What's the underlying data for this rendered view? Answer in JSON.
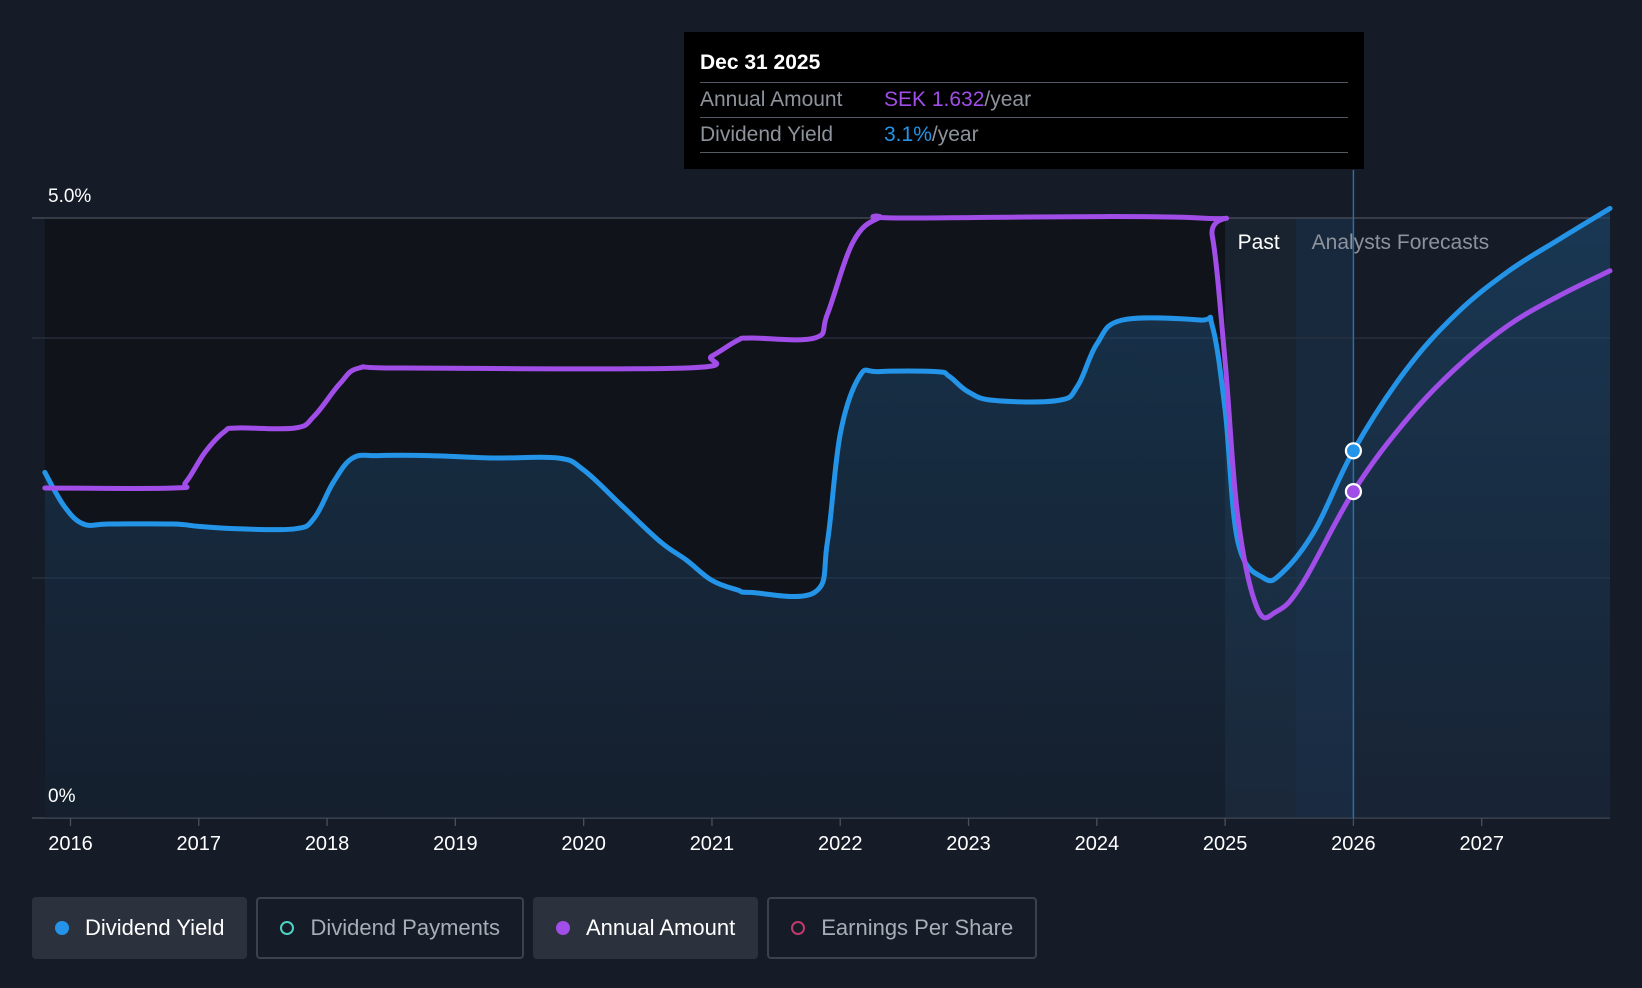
{
  "chart_data": {
    "type": "line",
    "title": "",
    "y_axis": {
      "ticks": [
        {
          "value": 5.0,
          "label": "5.0%"
        },
        {
          "value": 0,
          "label": "0%"
        }
      ],
      "ylim": [
        0,
        5.0
      ]
    },
    "x_axis": {
      "ticks": [
        "2016",
        "2017",
        "2018",
        "2019",
        "2020",
        "2021",
        "2022",
        "2023",
        "2024",
        "2025",
        "2026",
        "2027"
      ],
      "xlim": [
        2015.7,
        2028.0
      ]
    },
    "regions": {
      "past_label": "Past",
      "forecast_label": "Analysts Forecasts",
      "past_start": 2025.0,
      "forecast_start": 2025.55,
      "cursor": 2026.0
    },
    "series": [
      {
        "name": "Dividend Yield",
        "color": "#2394e8",
        "filled": true,
        "points": [
          [
            2015.8,
            2.88
          ],
          [
            2015.95,
            2.6
          ],
          [
            2016.1,
            2.45
          ],
          [
            2016.3,
            2.45
          ],
          [
            2016.8,
            2.45
          ],
          [
            2017.0,
            2.43
          ],
          [
            2017.3,
            2.41
          ],
          [
            2017.75,
            2.41
          ],
          [
            2017.9,
            2.5
          ],
          [
            2018.05,
            2.8
          ],
          [
            2018.2,
            3.0
          ],
          [
            2018.4,
            3.02
          ],
          [
            2018.8,
            3.02
          ],
          [
            2019.3,
            3.0
          ],
          [
            2019.8,
            3.0
          ],
          [
            2020.0,
            2.9
          ],
          [
            2020.3,
            2.6
          ],
          [
            2020.6,
            2.3
          ],
          [
            2020.8,
            2.15
          ],
          [
            2021.0,
            1.98
          ],
          [
            2021.2,
            1.9
          ],
          [
            2021.3,
            1.88
          ],
          [
            2021.8,
            1.88
          ],
          [
            2021.9,
            2.3
          ],
          [
            2022.0,
            3.2
          ],
          [
            2022.15,
            3.68
          ],
          [
            2022.3,
            3.72
          ],
          [
            2022.75,
            3.72
          ],
          [
            2022.85,
            3.68
          ],
          [
            2023.0,
            3.55
          ],
          [
            2023.2,
            3.48
          ],
          [
            2023.7,
            3.48
          ],
          [
            2023.85,
            3.6
          ],
          [
            2024.0,
            3.95
          ],
          [
            2024.2,
            4.15
          ],
          [
            2024.8,
            4.15
          ],
          [
            2024.9,
            4.1
          ],
          [
            2025.0,
            3.4
          ],
          [
            2025.1,
            2.3
          ],
          [
            2025.3,
            2.0
          ],
          [
            2025.45,
            2.05
          ],
          [
            2025.7,
            2.4
          ],
          [
            2026.0,
            3.06
          ],
          [
            2026.4,
            3.72
          ],
          [
            2026.8,
            4.2
          ],
          [
            2027.2,
            4.55
          ],
          [
            2027.6,
            4.82
          ],
          [
            2028.0,
            5.08
          ]
        ]
      },
      {
        "name": "Annual Amount",
        "color": "#a14de8",
        "filled": false,
        "points": [
          [
            2015.8,
            2.75
          ],
          [
            2016.8,
            2.75
          ],
          [
            2016.9,
            2.8
          ],
          [
            2017.05,
            3.05
          ],
          [
            2017.2,
            3.22
          ],
          [
            2017.3,
            3.25
          ],
          [
            2017.75,
            3.25
          ],
          [
            2017.9,
            3.35
          ],
          [
            2018.1,
            3.62
          ],
          [
            2018.25,
            3.75
          ],
          [
            2018.6,
            3.75
          ],
          [
            2020.8,
            3.75
          ],
          [
            2021.0,
            3.85
          ],
          [
            2021.2,
            3.98
          ],
          [
            2021.3,
            4.0
          ],
          [
            2021.8,
            4.0
          ],
          [
            2021.9,
            4.2
          ],
          [
            2022.1,
            4.8
          ],
          [
            2022.3,
            5.0
          ],
          [
            2022.5,
            5.0
          ],
          [
            2024.8,
            5.0
          ],
          [
            2024.9,
            4.85
          ],
          [
            2025.0,
            3.8
          ],
          [
            2025.1,
            2.5
          ],
          [
            2025.25,
            1.75
          ],
          [
            2025.4,
            1.72
          ],
          [
            2025.6,
            1.95
          ],
          [
            2026.0,
            2.72
          ],
          [
            2026.4,
            3.3
          ],
          [
            2026.8,
            3.75
          ],
          [
            2027.2,
            4.1
          ],
          [
            2027.6,
            4.35
          ],
          [
            2028.0,
            4.56
          ]
        ]
      }
    ],
    "markers": [
      {
        "series": "Dividend Yield",
        "x": 2026.0,
        "y": 3.06
      },
      {
        "series": "Annual Amount",
        "x": 2026.0,
        "y": 2.72
      }
    ]
  },
  "tooltip": {
    "date": "Dec 31 2025",
    "rows": [
      {
        "label": "Annual Amount",
        "value": "SEK 1.632",
        "unit": "/year",
        "color": "#a14de8"
      },
      {
        "label": "Dividend Yield",
        "value": "3.1%",
        "unit": "/year",
        "color": "#2394e8"
      }
    ]
  },
  "legend": [
    {
      "label": "Dividend Yield",
      "color": "#2394e8",
      "active": true
    },
    {
      "label": "Dividend Payments",
      "color": "#4fd1c5",
      "active": false
    },
    {
      "label": "Annual Amount",
      "color": "#a14de8",
      "active": true
    },
    {
      "label": "Earnings Per Share",
      "color": "#c0396b",
      "active": false
    }
  ]
}
